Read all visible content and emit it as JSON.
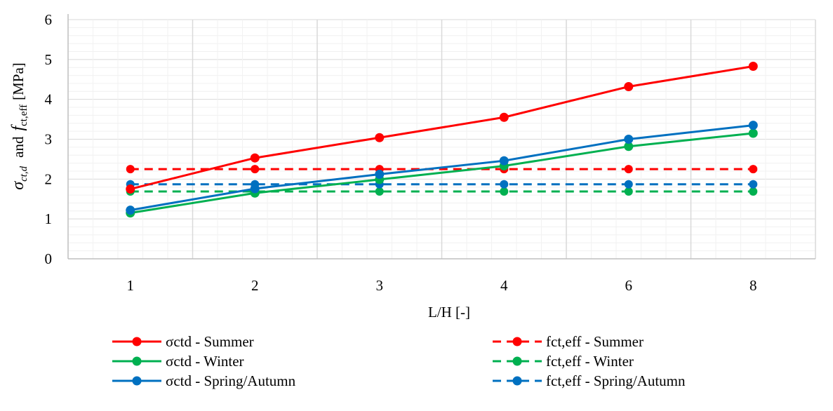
{
  "chart_data": {
    "type": "line",
    "categories": [
      "1",
      "2",
      "3",
      "4",
      "6",
      "8"
    ],
    "xlabel": "L/H [-]",
    "ylabel": {
      "sigma": "σ",
      "sigma_sub": "ct,d",
      "and": "and",
      "f": "f",
      "f_sub": "ct,eff",
      "unit": "[MPa]"
    },
    "ylim": [
      0,
      6
    ],
    "yticks": [
      0,
      1,
      2,
      3,
      4,
      5,
      6
    ],
    "grid": true,
    "legend_position": "bottom",
    "series": [
      {
        "name": "σctd - Summer",
        "color": "#ff0000",
        "dash": false,
        "values": [
          1.75,
          2.53,
          3.04,
          3.55,
          4.32,
          4.83
        ]
      },
      {
        "name": "σctd - Winter",
        "color": "#00b050",
        "dash": false,
        "values": [
          1.15,
          1.65,
          1.99,
          2.33,
          2.82,
          3.15
        ]
      },
      {
        "name": "σctd - Spring/Autumn",
        "color": "#0070c0",
        "dash": false,
        "values": [
          1.22,
          1.76,
          2.12,
          2.46,
          3.0,
          3.35
        ]
      },
      {
        "name": "fct,eff - Summer",
        "color": "#ff0000",
        "dash": true,
        "values": [
          2.25,
          2.25,
          2.25,
          2.25,
          2.25,
          2.25
        ]
      },
      {
        "name": "fct,eff - Winter",
        "color": "#00b050",
        "dash": true,
        "values": [
          1.69,
          1.69,
          1.69,
          1.69,
          1.69,
          1.69
        ]
      },
      {
        "name": "fct,eff - Spring/Autumn",
        "color": "#0070c0",
        "dash": true,
        "values": [
          1.87,
          1.87,
          1.87,
          1.87,
          1.87,
          1.87
        ]
      }
    ]
  }
}
